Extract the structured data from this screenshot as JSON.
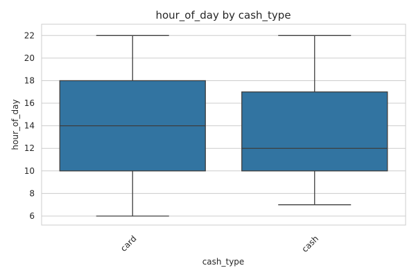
{
  "chart_data": {
    "type": "box",
    "title": "hour_of_day by cash_type",
    "xlabel": "cash_type",
    "ylabel": "hour_of_day",
    "ylim": [
      5.2,
      23
    ],
    "yticks": [
      6,
      8,
      10,
      12,
      14,
      16,
      18,
      20,
      22
    ],
    "grid": true,
    "categories": [
      "card",
      "cash"
    ],
    "boxes": [
      {
        "category": "card",
        "whisker_low": 6,
        "q1": 10,
        "median": 14,
        "q3": 18,
        "whisker_high": 22
      },
      {
        "category": "cash",
        "whisker_low": 7,
        "q1": 10,
        "median": 12,
        "q3": 17,
        "whisker_high": 22
      }
    ],
    "colors": {
      "box_fill": "#3274a1",
      "line": "#3d3d3d",
      "grid": "#cccccc",
      "spine": "#cccccc",
      "text": "#262626"
    }
  }
}
